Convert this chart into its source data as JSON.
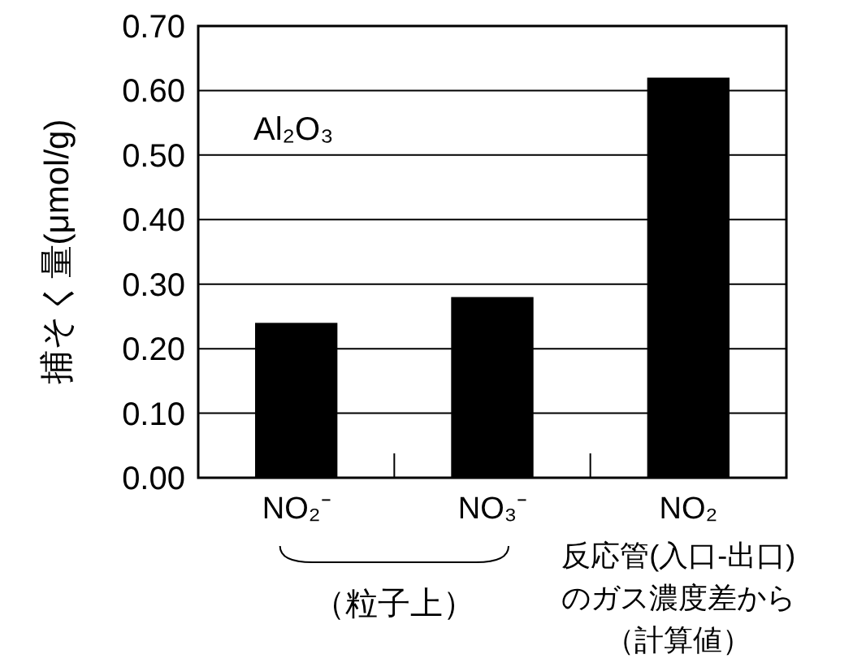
{
  "chart_data": {
    "type": "bar",
    "ylabel": "捕そく量(μmol/g)",
    "categories": [
      "NO₂⁻",
      "NO₃⁻",
      "NO₂"
    ],
    "values": [
      0.24,
      0.28,
      0.62
    ],
    "color": "#000000",
    "ylim": [
      0,
      0.7
    ],
    "yticks": [
      {
        "value": 0,
        "label": "0.00"
      },
      {
        "value": 0.1,
        "label": "0.10"
      },
      {
        "value": 0.2,
        "label": "0.20"
      },
      {
        "value": 0.3,
        "label": "0.30"
      },
      {
        "value": 0.4,
        "label": "0.40"
      },
      {
        "value": 0.5,
        "label": "0.50"
      },
      {
        "value": 0.6,
        "label": "0.60"
      },
      {
        "value": 0.7,
        "label": "0.70"
      }
    ],
    "grid": "y",
    "annotations": [
      "Al₂O₃",
      "（粒子上）",
      "反応管(入口-出口)",
      "のガス濃度差から",
      "（計算値）"
    ]
  }
}
